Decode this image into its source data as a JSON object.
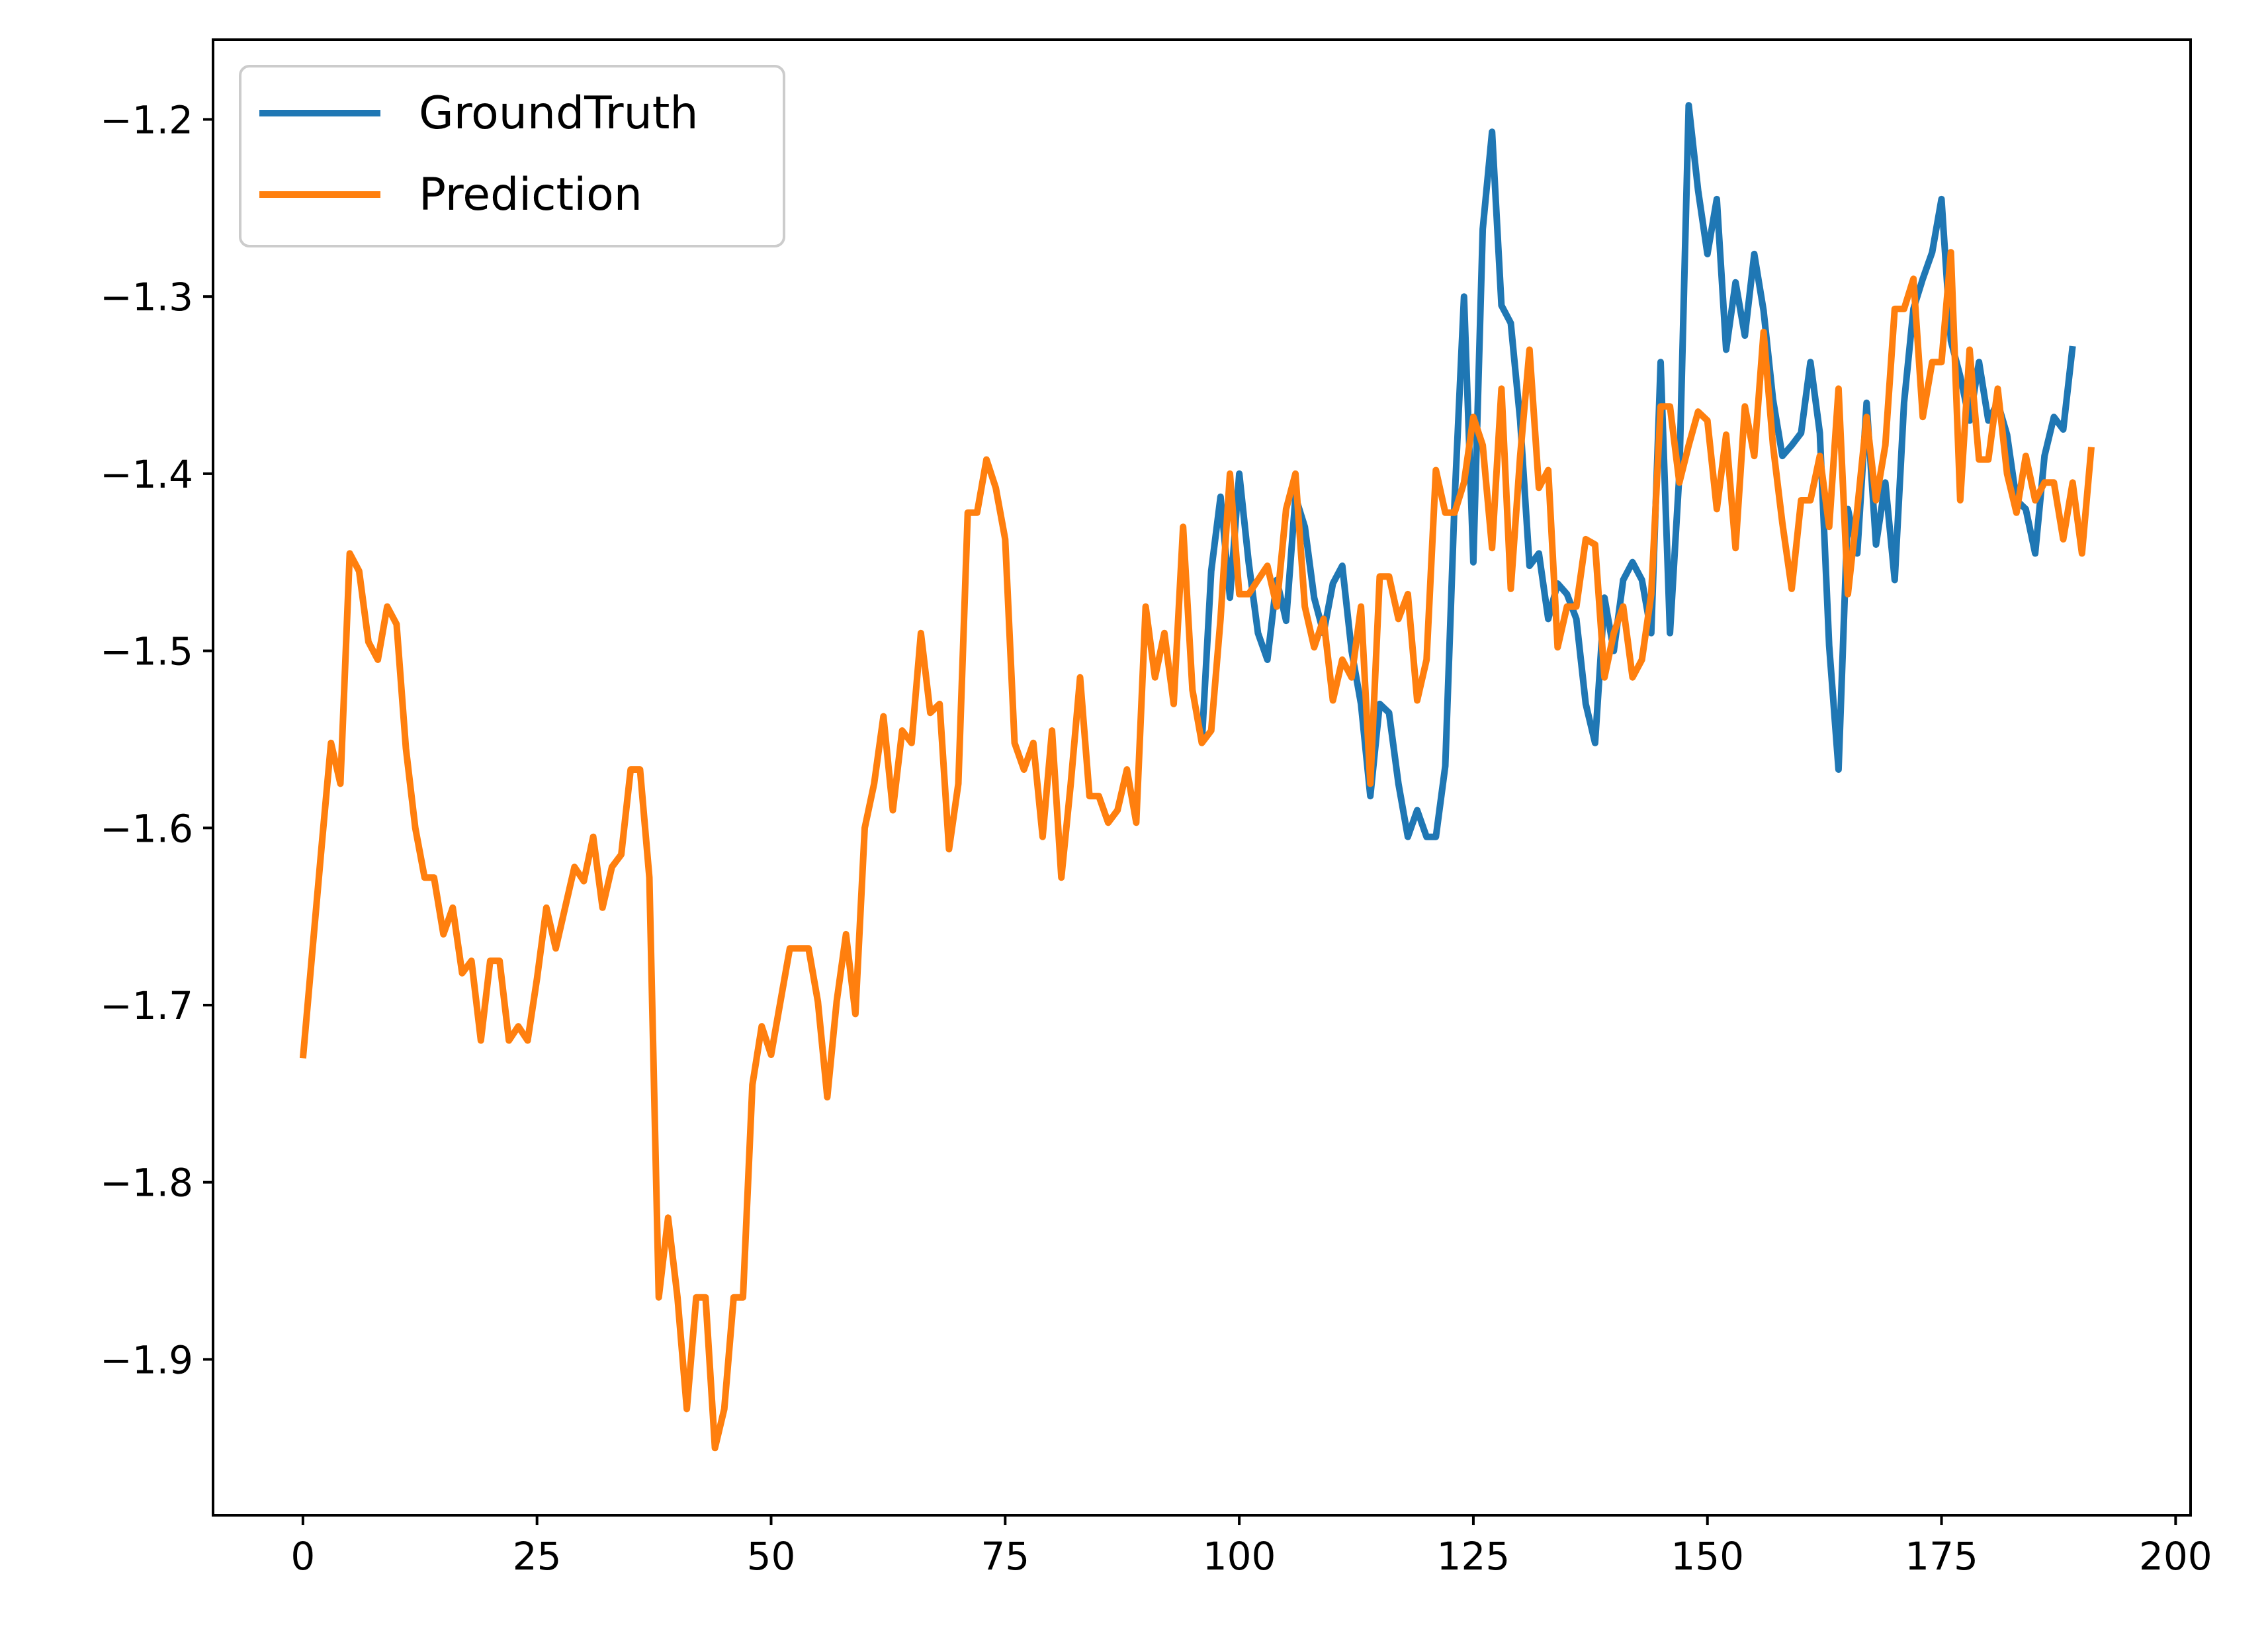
{
  "chart_data": {
    "type": "line",
    "title": "",
    "xlabel": "",
    "ylabel": "",
    "xlim": [
      -9.6,
      201.6
    ],
    "ylim": [
      -1.988,
      -1.155
    ],
    "x_ticks": [
      0,
      25,
      50,
      75,
      100,
      125,
      150,
      175,
      200
    ],
    "x_tick_labels": [
      "0",
      "25",
      "50",
      "75",
      "100",
      "125",
      "150",
      "175",
      "200"
    ],
    "y_ticks": [
      -1.9,
      -1.8,
      -1.7,
      -1.6,
      -1.5,
      -1.4,
      -1.3,
      -1.2
    ],
    "y_tick_labels": [
      "−1.9",
      "−1.8",
      "−1.7",
      "−1.6",
      "−1.5",
      "−1.4",
      "−1.3",
      "−1.2"
    ],
    "grid": false,
    "legend_position": "upper-left",
    "series": [
      {
        "name": "GroundTruth",
        "color": "#1f77b4",
        "x_start": 96,
        "values": [
          -1.552,
          -1.455,
          -1.413,
          -1.47,
          -1.4,
          -1.45,
          -1.49,
          -1.505,
          -1.46,
          -1.483,
          -1.413,
          -1.43,
          -1.47,
          -1.49,
          -1.462,
          -1.452,
          -1.5,
          -1.53,
          -1.582,
          -1.53,
          -1.535,
          -1.575,
          -1.605,
          -1.59,
          -1.605,
          -1.605,
          -1.565,
          -1.415,
          -1.3,
          -1.45,
          -1.262,
          -1.207,
          -1.305,
          -1.315,
          -1.37,
          -1.452,
          -1.445,
          -1.482,
          -1.462,
          -1.468,
          -1.482,
          -1.53,
          -1.552,
          -1.47,
          -1.5,
          -1.46,
          -1.45,
          -1.46,
          -1.49,
          -1.337,
          -1.49,
          -1.4,
          -1.192,
          -1.24,
          -1.276,
          -1.245,
          -1.33,
          -1.292,
          -1.322,
          -1.276,
          -1.308,
          -1.358,
          -1.39,
          -1.384,
          -1.377,
          -1.337,
          -1.377,
          -1.497,
          -1.567,
          -1.42,
          -1.445,
          -1.36,
          -1.44,
          -1.405,
          -1.46,
          -1.36,
          -1.307,
          -1.29,
          -1.275,
          -1.245,
          -1.325,
          -1.345,
          -1.37,
          -1.337,
          -1.37,
          -1.36,
          -1.378,
          -1.415,
          -1.42,
          -1.445,
          -1.39,
          -1.368,
          -1.375,
          -1.328
        ]
      },
      {
        "name": "Prediction",
        "color": "#ff7f0e",
        "x_start": 0,
        "values": [
          -1.73,
          -1.67,
          -1.61,
          -1.552,
          -1.575,
          -1.445,
          -1.455,
          -1.495,
          -1.505,
          -1.475,
          -1.485,
          -1.555,
          -1.6,
          -1.628,
          -1.628,
          -1.66,
          -1.645,
          -1.682,
          -1.675,
          -1.72,
          -1.675,
          -1.675,
          -1.72,
          -1.712,
          -1.72,
          -1.685,
          -1.645,
          -1.668,
          -1.645,
          -1.622,
          -1.63,
          -1.605,
          -1.645,
          -1.622,
          -1.615,
          -1.567,
          -1.567,
          -1.628,
          -1.865,
          -1.82,
          -1.865,
          -1.928,
          -1.865,
          -1.865,
          -1.95,
          -1.928,
          -1.865,
          -1.865,
          -1.745,
          -1.712,
          -1.728,
          -1.698,
          -1.668,
          -1.668,
          -1.668,
          -1.698,
          -1.752,
          -1.698,
          -1.66,
          -1.705,
          -1.6,
          -1.575,
          -1.537,
          -1.59,
          -1.545,
          -1.552,
          -1.49,
          -1.535,
          -1.53,
          -1.612,
          -1.575,
          -1.422,
          -1.422,
          -1.392,
          -1.408,
          -1.437,
          -1.552,
          -1.567,
          -1.552,
          -1.605,
          -1.545,
          -1.628,
          -1.575,
          -1.515,
          -1.582,
          -1.582,
          -1.597,
          -1.59,
          -1.567,
          -1.597,
          -1.475,
          -1.515,
          -1.49,
          -1.53,
          -1.43,
          -1.522,
          -1.552,
          -1.545,
          -1.482,
          -1.4,
          -1.468,
          -1.468,
          -1.46,
          -1.452,
          -1.475,
          -1.42,
          -1.4,
          -1.475,
          -1.498,
          -1.482,
          -1.528,
          -1.505,
          -1.515,
          -1.475,
          -1.575,
          -1.458,
          -1.458,
          -1.482,
          -1.468,
          -1.528,
          -1.505,
          -1.398,
          -1.422,
          -1.422,
          -1.405,
          -1.368,
          -1.384,
          -1.442,
          -1.352,
          -1.465,
          -1.39,
          -1.33,
          -1.408,
          -1.398,
          -1.498,
          -1.475,
          -1.475,
          -1.437,
          -1.44,
          -1.515,
          -1.49,
          -1.475,
          -1.515,
          -1.505,
          -1.468,
          -1.362,
          -1.362,
          -1.405,
          -1.384,
          -1.365,
          -1.37,
          -1.42,
          -1.378,
          -1.442,
          -1.362,
          -1.39,
          -1.32,
          -1.384,
          -1.428,
          -1.465,
          -1.415,
          -1.415,
          -1.39,
          -1.43,
          -1.352,
          -1.468,
          -1.42,
          -1.368,
          -1.415,
          -1.384,
          -1.307,
          -1.307,
          -1.29,
          -1.368,
          -1.337,
          -1.337,
          -1.275,
          -1.415,
          -1.33,
          -1.392,
          -1.392,
          -1.352,
          -1.4,
          -1.422,
          -1.39,
          -1.415,
          -1.405,
          -1.405,
          -1.437,
          -1.405,
          -1.445,
          -1.385
        ]
      }
    ]
  }
}
